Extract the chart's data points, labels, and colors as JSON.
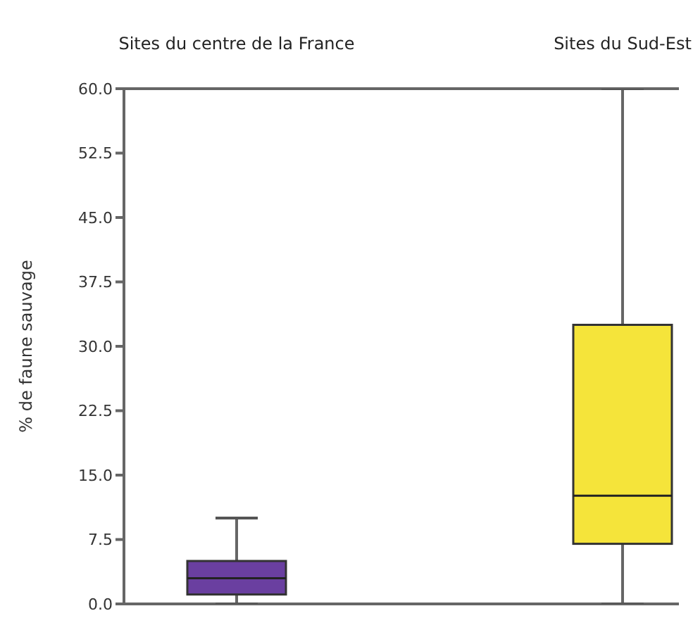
{
  "chart_data": {
    "type": "box",
    "ylabel": "% de faune sauvage",
    "categories": [
      "Sites du centre de la France",
      "Sites du Sud-Est"
    ],
    "ylim": [
      0,
      60
    ],
    "yticks": [
      {
        "value": 0,
        "label": "0.0"
      },
      {
        "value": 7.5,
        "label": "7.5"
      },
      {
        "value": 15,
        "label": "15.0"
      },
      {
        "value": 22.5,
        "label": "22.5"
      },
      {
        "value": 30,
        "label": "30.0"
      },
      {
        "value": 37.5,
        "label": "37.5"
      },
      {
        "value": 45,
        "label": "45.0"
      },
      {
        "value": 52.5,
        "label": "52.5"
      },
      {
        "value": 60,
        "label": "60.0"
      }
    ],
    "colors": [
      "#6a3fa0",
      "#f5e43a"
    ],
    "boxes": [
      {
        "low": 0,
        "q1": 1.1,
        "median": 3,
        "q3": 5,
        "high": 10
      },
      {
        "low": 0,
        "q1": 7,
        "median": 12.6,
        "q3": 32.5,
        "high": 60
      }
    ],
    "grid": false
  }
}
